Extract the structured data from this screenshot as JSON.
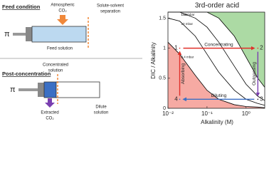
{
  "diagram": {
    "feed_title": "Feed condition",
    "atmospheric_co2": [
      "Atmospheric",
      "CO₂"
    ],
    "separation": [
      "Solute-solvent",
      "separation"
    ],
    "feed_solution": "Feed solution",
    "pressure_symbol_top": "π",
    "post_title": "Post-concentration",
    "concentrated": [
      "Concentrated",
      "solution"
    ],
    "extracted": [
      "Extracted",
      "CO₂"
    ],
    "dilute": [
      "Dilute",
      "solution"
    ],
    "pressure_symbol_bottom": "π"
  },
  "chart_data": {
    "type": "line",
    "title": "3rd-order acid",
    "x_label": "Alkalinity (M)",
    "y_label": "DIC / Alkalinity",
    "x_scale": "log",
    "xlim": [
      0.01,
      3
    ],
    "xticks": [
      {
        "value": 0.01,
        "label": "10⁻²"
      },
      {
        "value": 0.1,
        "label": "10⁻¹"
      },
      {
        "value": 1,
        "label": "10⁰"
      }
    ],
    "ylim": [
      0,
      1.6
    ],
    "yticks": [
      0,
      0.5,
      1,
      1.5
    ],
    "x": [
      0.01,
      0.02,
      0.05,
      0.1,
      0.2,
      0.5,
      1,
      2,
      3
    ],
    "series": [
      {
        "name": "0.4 mbar",
        "color": "#000000",
        "fill": "below",
        "fill_color": "#f6aaa3",
        "values": [
          1.1,
          0.9,
          0.55,
          0.3,
          0.15,
          0.06,
          0.03,
          0.02,
          0.01
        ]
      },
      {
        "name": "10 mbar",
        "color": "#000000",
        "values": [
          1.5,
          1.45,
          1.2,
          0.9,
          0.6,
          0.3,
          0.15,
          0.08,
          0.05
        ]
      },
      {
        "name": "100 mbar",
        "color": "#000000",
        "values": [
          1.6,
          1.6,
          1.5,
          1.35,
          1.1,
          0.7,
          0.4,
          0.2,
          0.13
        ]
      },
      {
        "name": "1 bar",
        "color": "#000000",
        "fill": "above",
        "fill_color": "#acdaa4",
        "values": [
          1.6,
          1.6,
          1.6,
          1.6,
          1.5,
          1.2,
          0.85,
          0.5,
          0.35
        ]
      }
    ],
    "points": [
      {
        "label": "1",
        "x": 0.02,
        "y": 1,
        "color": "#e0302a"
      },
      {
        "label": "2",
        "x": 2,
        "y": 1,
        "color": "#e0302a"
      },
      {
        "label": "3",
        "x": 2,
        "y": 0.15,
        "color": "#222222"
      },
      {
        "label": "4",
        "x": 0.02,
        "y": 0.15,
        "color": "#3a6fc4"
      }
    ],
    "paths": [
      {
        "text": "Concentrating",
        "from": 0,
        "to": 1,
        "color": "#e0302a"
      },
      {
        "text": "Outgassing",
        "from": 1,
        "to": 2,
        "color": "#7a3fb0"
      },
      {
        "text": "Diluting",
        "from": 2,
        "to": 3,
        "color": "#3a6fc4"
      },
      {
        "text": "Absorbing",
        "from": 3,
        "to": 0,
        "color": "#e0302a"
      }
    ]
  }
}
